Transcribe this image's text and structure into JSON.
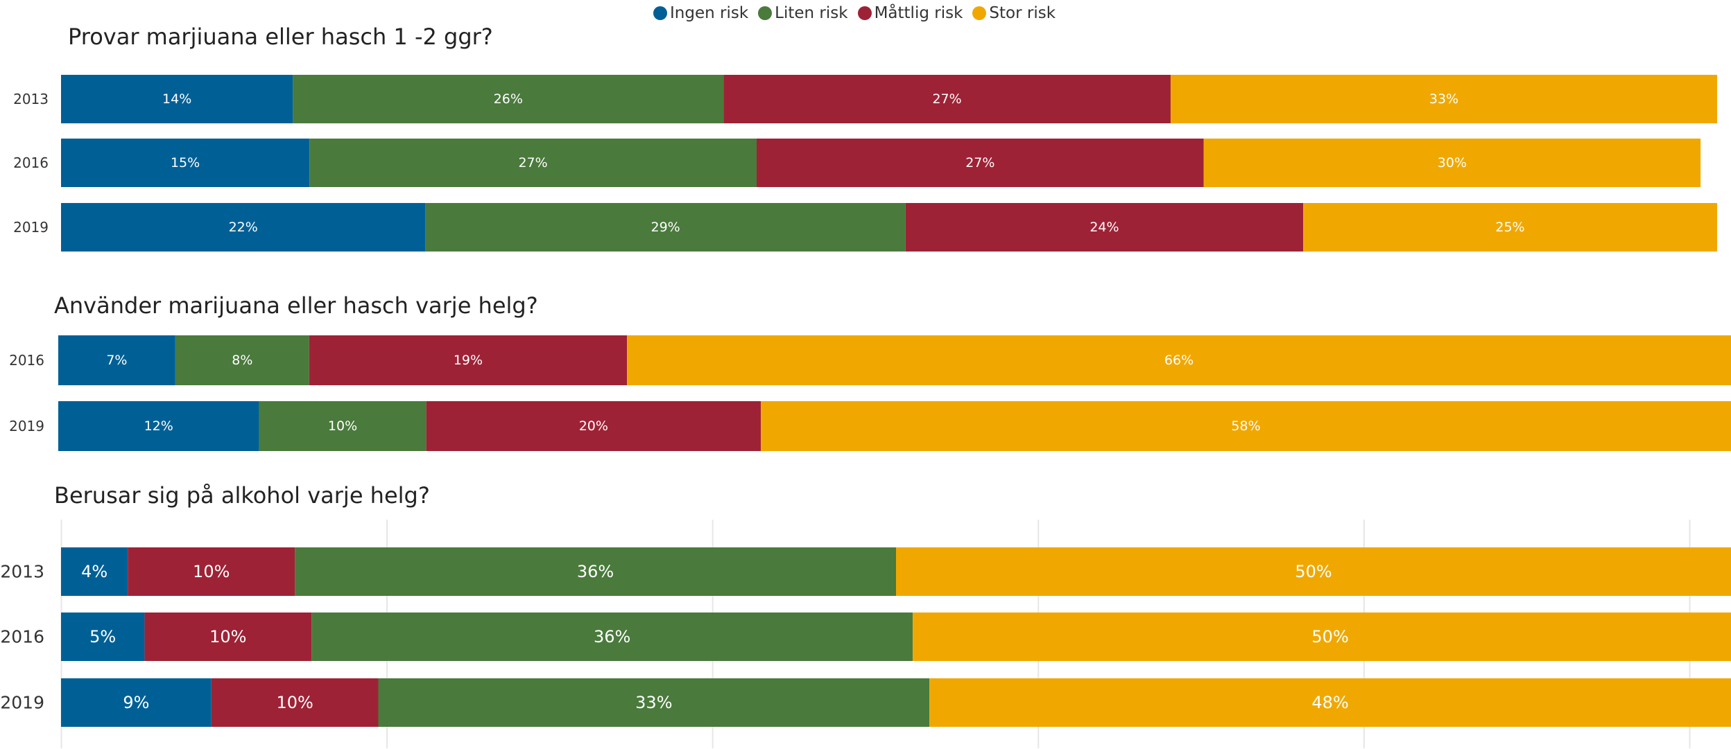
{
  "legend": {
    "items": [
      {
        "label": "Ingen risk",
        "color": "#006096"
      },
      {
        "label": "Liten risk",
        "color": "#4a7a3c"
      },
      {
        "label": "Måttlig risk",
        "color": "#9e2236"
      },
      {
        "label": "Stor risk",
        "color": "#f0a800"
      }
    ]
  },
  "titles": {
    "c1": "Provar marjiuana eller hasch 1 -2 ggr?",
    "c2": "Använder marijuana eller hasch varje helg?",
    "c3": "Berusar sig på alkohol varje helg?"
  },
  "chart_data": [
    {
      "type": "bar",
      "orientation": "horizontal-stacked-100",
      "title": "Provar marjiuana eller hasch 1 -2 ggr?",
      "categories": [
        "2013",
        "2016",
        "2019"
      ],
      "series": [
        {
          "name": "Ingen risk",
          "color": "#006096",
          "values": [
            14,
            15,
            22
          ],
          "labels": [
            "14%",
            "15%",
            "22%"
          ]
        },
        {
          "name": "Liten risk",
          "color": "#4a7a3c",
          "values": [
            26,
            27,
            29
          ],
          "labels": [
            "26%",
            "27%",
            "29%"
          ]
        },
        {
          "name": "Måttlig risk",
          "color": "#9e2236",
          "values": [
            27,
            27,
            24
          ],
          "labels": [
            "27%",
            "27%",
            "24%"
          ]
        },
        {
          "name": "Stor risk",
          "color": "#f0a800",
          "values": [
            33,
            30,
            25
          ],
          "labels": [
            "33%",
            "30%",
            "25%"
          ]
        }
      ]
    },
    {
      "type": "bar",
      "orientation": "horizontal-stacked-100",
      "title": "Använder marijuana eller hasch varje helg?",
      "categories": [
        "2016",
        "2019"
      ],
      "series": [
        {
          "name": "Ingen risk",
          "color": "#006096",
          "values": [
            7,
            12
          ],
          "labels": [
            "7%",
            "12%"
          ]
        },
        {
          "name": "Liten risk",
          "color": "#4a7a3c",
          "values": [
            8,
            10
          ],
          "labels": [
            "8%",
            "10%"
          ]
        },
        {
          "name": "Måttlig risk",
          "color": "#9e2236",
          "values": [
            19,
            20
          ],
          "labels": [
            "19%",
            "20%"
          ]
        },
        {
          "name": "Stor risk",
          "color": "#f0a800",
          "values": [
            66,
            58
          ],
          "labels": [
            "66%",
            "58%"
          ]
        }
      ]
    },
    {
      "type": "bar",
      "orientation": "horizontal-stacked-100",
      "title": "Berusar sig på alkohol varje helg?",
      "categories": [
        "2013",
        "2016",
        "2019"
      ],
      "grid": true,
      "series": [
        {
          "name": "Ingen risk",
          "color": "#006096",
          "values": [
            4,
            5,
            9
          ],
          "labels": [
            "4%",
            "5%",
            "9%"
          ]
        },
        {
          "name": "Måttlig risk",
          "color": "#9e2236",
          "values": [
            10,
            10,
            10
          ],
          "labels": [
            "10%",
            "10%",
            "10%"
          ]
        },
        {
          "name": "Liten risk",
          "color": "#4a7a3c",
          "values": [
            36,
            36,
            33
          ],
          "labels": [
            "36%",
            "36%",
            "33%"
          ]
        },
        {
          "name": "Stor risk",
          "color": "#f0a800",
          "values": [
            50,
            50,
            48
          ],
          "labels": [
            "50%",
            "50%",
            "48%"
          ]
        }
      ]
    }
  ]
}
